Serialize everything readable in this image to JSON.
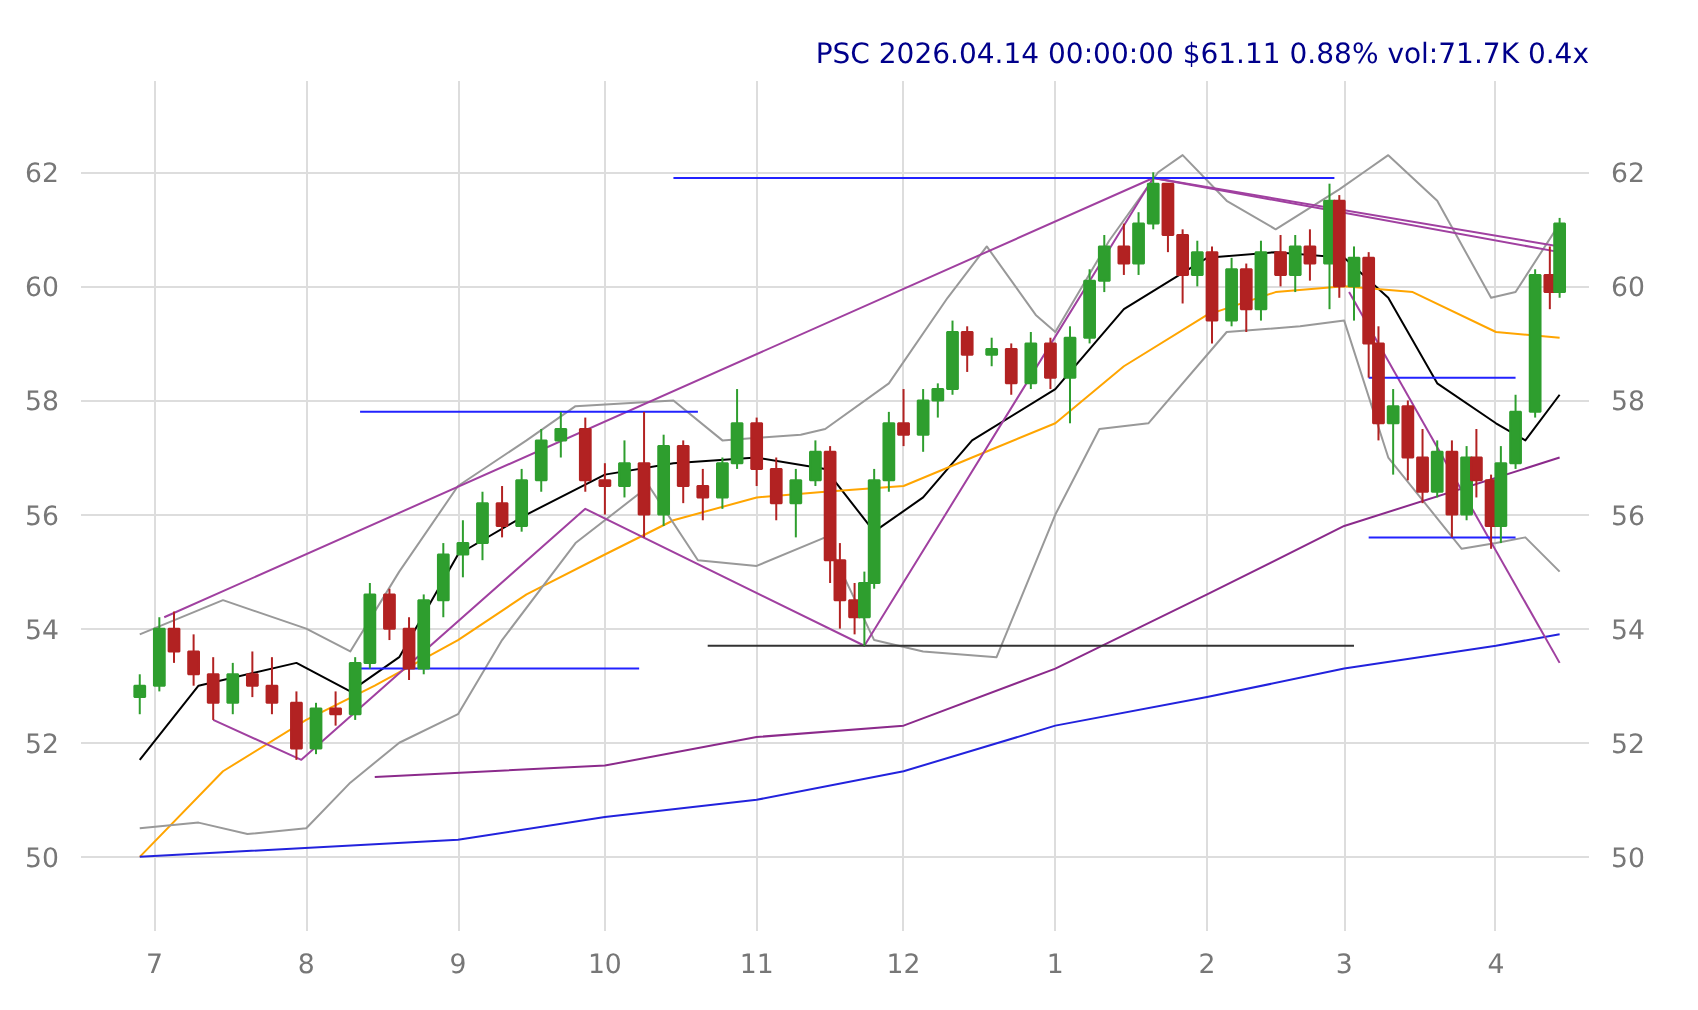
{
  "chart_data": {
    "type": "candlestick",
    "title": "PSC 2026.04.14 00:00:00 $61.11 0.88% vol:71.7K 0.4x",
    "x": [
      "2025-06-28",
      "2025-07-02",
      "2025-07-05",
      "2025-07-09",
      "2025-07-13",
      "2025-07-17",
      "2025-07-21",
      "2025-07-25",
      "2025-07-30",
      "2025-08-03",
      "2025-08-07",
      "2025-08-11",
      "2025-08-14",
      "2025-08-18",
      "2025-08-22",
      "2025-08-25",
      "2025-08-29",
      "2025-09-02",
      "2025-09-06",
      "2025-09-10",
      "2025-09-14",
      "2025-09-18",
      "2025-09-22",
      "2025-09-27",
      "2025-10-01",
      "2025-10-05",
      "2025-10-09",
      "2025-10-13",
      "2025-10-17",
      "2025-10-21",
      "2025-10-25",
      "2025-10-28",
      "2025-11-01",
      "2025-11-05",
      "2025-11-09",
      "2025-11-13",
      "2025-11-16",
      "2025-11-18",
      "2025-11-21",
      "2025-11-23",
      "2025-11-25",
      "2025-11-28",
      "2025-12-01",
      "2025-12-05",
      "2025-12-08",
      "2025-12-11",
      "2025-12-14",
      "2025-12-19",
      "2025-12-23",
      "2025-12-27",
      "2025-12-31",
      "2026-01-04",
      "2026-01-08",
      "2026-01-11",
      "2026-01-15",
      "2026-01-18",
      "2026-01-21",
      "2026-01-24",
      "2026-01-27",
      "2026-01-30",
      "2026-02-02",
      "2026-02-06",
      "2026-02-09",
      "2026-02-12",
      "2026-02-16",
      "2026-02-19",
      "2026-02-22",
      "2026-02-26",
      "2026-02-28",
      "2026-03-03",
      "2026-03-06",
      "2026-03-08",
      "2026-03-11",
      "2026-03-14",
      "2026-03-17",
      "2026-03-20",
      "2026-03-23",
      "2026-03-26",
      "2026-03-28",
      "2026-03-31",
      "2026-04-02",
      "2026-04-05",
      "2026-04-09",
      "2026-04-12",
      "2026-04-14"
    ],
    "ohlc": [
      [
        52.8,
        53.2,
        52.5,
        53.0
      ],
      [
        53.0,
        54.2,
        52.9,
        54.0
      ],
      [
        54.0,
        54.3,
        53.4,
        53.6
      ],
      [
        53.6,
        53.9,
        53.0,
        53.2
      ],
      [
        53.2,
        53.5,
        52.4,
        52.7
      ],
      [
        52.7,
        53.4,
        52.5,
        53.2
      ],
      [
        53.2,
        53.6,
        52.8,
        53.0
      ],
      [
        53.0,
        53.5,
        52.5,
        52.7
      ],
      [
        52.7,
        52.9,
        51.7,
        51.9
      ],
      [
        51.9,
        52.7,
        51.8,
        52.6
      ],
      [
        52.6,
        52.9,
        52.3,
        52.5
      ],
      [
        52.5,
        53.5,
        52.4,
        53.4
      ],
      [
        53.4,
        54.8,
        53.3,
        54.6
      ],
      [
        54.6,
        54.7,
        53.8,
        54.0
      ],
      [
        54.0,
        54.2,
        53.1,
        53.3
      ],
      [
        53.3,
        54.6,
        53.2,
        54.5
      ],
      [
        54.5,
        55.5,
        54.2,
        55.3
      ],
      [
        55.3,
        55.9,
        54.9,
        55.5
      ],
      [
        55.5,
        56.4,
        55.2,
        56.2
      ],
      [
        56.2,
        56.5,
        55.6,
        55.8
      ],
      [
        55.8,
        56.8,
        55.7,
        56.6
      ],
      [
        56.6,
        57.5,
        56.4,
        57.3
      ],
      [
        57.3,
        57.8,
        57.0,
        57.5
      ],
      [
        57.5,
        57.7,
        56.4,
        56.6
      ],
      [
        56.6,
        56.9,
        56.0,
        56.5
      ],
      [
        56.5,
        57.3,
        56.3,
        56.9
      ],
      [
        56.9,
        57.8,
        55.6,
        56.0
      ],
      [
        56.0,
        57.4,
        55.8,
        57.2
      ],
      [
        57.2,
        57.3,
        56.2,
        56.5
      ],
      [
        56.5,
        56.8,
        55.9,
        56.3
      ],
      [
        56.3,
        57.0,
        56.1,
        56.9
      ],
      [
        56.9,
        58.2,
        56.8,
        57.6
      ],
      [
        57.6,
        57.7,
        56.5,
        56.8
      ],
      [
        56.8,
        57.0,
        55.9,
        56.2
      ],
      [
        56.2,
        56.8,
        55.6,
        56.6
      ],
      [
        56.6,
        57.3,
        56.5,
        57.1
      ],
      [
        57.1,
        57.2,
        54.8,
        55.2
      ],
      [
        55.2,
        55.5,
        54.0,
        54.5
      ],
      [
        54.5,
        54.8,
        53.9,
        54.2
      ],
      [
        54.2,
        55.0,
        53.7,
        54.8
      ],
      [
        54.8,
        56.8,
        54.7,
        56.6
      ],
      [
        56.6,
        57.8,
        56.4,
        57.6
      ],
      [
        57.6,
        58.2,
        57.2,
        57.4
      ],
      [
        57.4,
        58.2,
        57.1,
        58.0
      ],
      [
        58.0,
        58.3,
        57.7,
        58.2
      ],
      [
        58.2,
        59.4,
        58.1,
        59.2
      ],
      [
        59.2,
        59.3,
        58.5,
        58.8
      ],
      [
        58.8,
        59.1,
        58.6,
        58.9
      ],
      [
        58.9,
        59.0,
        58.1,
        58.3
      ],
      [
        58.3,
        59.2,
        58.2,
        59.0
      ],
      [
        59.0,
        59.1,
        58.2,
        58.4
      ],
      [
        58.4,
        59.3,
        57.6,
        59.1
      ],
      [
        59.1,
        60.3,
        59.0,
        60.1
      ],
      [
        60.1,
        60.9,
        59.9,
        60.7
      ],
      [
        60.7,
        61.1,
        60.2,
        60.4
      ],
      [
        60.4,
        61.3,
        60.2,
        61.1
      ],
      [
        61.1,
        62.0,
        61.0,
        61.8
      ],
      [
        61.8,
        61.8,
        60.6,
        60.9
      ],
      [
        60.9,
        61.0,
        59.7,
        60.2
      ],
      [
        60.2,
        60.8,
        60.0,
        60.6
      ],
      [
        60.6,
        60.7,
        59.0,
        59.4
      ],
      [
        59.4,
        60.5,
        59.3,
        60.3
      ],
      [
        60.3,
        60.4,
        59.2,
        59.6
      ],
      [
        59.6,
        60.8,
        59.4,
        60.6
      ],
      [
        60.6,
        60.9,
        60.0,
        60.2
      ],
      [
        60.2,
        60.9,
        59.9,
        60.7
      ],
      [
        60.7,
        61.0,
        60.1,
        60.4
      ],
      [
        60.4,
        61.8,
        59.6,
        61.5
      ],
      [
        61.5,
        61.6,
        59.8,
        60.0
      ],
      [
        60.0,
        60.7,
        59.4,
        60.5
      ],
      [
        60.5,
        60.6,
        58.4,
        59.0
      ],
      [
        59.0,
        59.3,
        57.3,
        57.6
      ],
      [
        57.6,
        58.2,
        56.7,
        57.9
      ],
      [
        57.9,
        58.0,
        56.6,
        57.0
      ],
      [
        57.0,
        57.5,
        56.2,
        56.4
      ],
      [
        56.4,
        57.3,
        56.3,
        57.1
      ],
      [
        57.1,
        57.3,
        55.6,
        56.0
      ],
      [
        56.0,
        57.2,
        55.9,
        57.0
      ],
      [
        57.0,
        57.5,
        56.3,
        56.6
      ],
      [
        56.6,
        56.7,
        55.4,
        55.8
      ],
      [
        55.8,
        57.2,
        55.5,
        56.9
      ],
      [
        56.9,
        58.1,
        56.8,
        57.8
      ],
      [
        57.8,
        60.3,
        57.7,
        60.2
      ],
      [
        60.2,
        60.7,
        59.6,
        59.9
      ],
      [
        59.9,
        61.2,
        59.8,
        61.1
      ]
    ],
    "colors": [
      "#2e9e2e",
      "#2e9e2e",
      "#b22222",
      "#b22222",
      "#b22222",
      "#2e9e2e",
      "#b22222",
      "#b22222",
      "#b22222",
      "#2e9e2e",
      "#b22222",
      "#2e9e2e",
      "#2e9e2e",
      "#b22222",
      "#b22222",
      "#2e9e2e",
      "#2e9e2e",
      "#2e9e2e",
      "#2e9e2e",
      "#b22222",
      "#2e9e2e",
      "#2e9e2e",
      "#2e9e2e",
      "#b22222",
      "#b22222",
      "#2e9e2e",
      "#b22222",
      "#2e9e2e",
      "#b22222",
      "#b22222",
      "#2e9e2e",
      "#2e9e2e",
      "#b22222",
      "#b22222",
      "#2e9e2e",
      "#2e9e2e",
      "#b22222",
      "#b22222",
      "#b22222",
      "#2e9e2e",
      "#2e9e2e",
      "#2e9e2e",
      "#b22222",
      "#2e9e2e",
      "#2e9e2e",
      "#2e9e2e",
      "#b22222",
      "#2e9e2e",
      "#b22222",
      "#2e9e2e",
      "#b22222",
      "#2e9e2e",
      "#2e9e2e",
      "#2e9e2e",
      "#b22222",
      "#2e9e2e",
      "#2e9e2e",
      "#b22222",
      "#b22222",
      "#2e9e2e",
      "#b22222",
      "#2e9e2e",
      "#b22222",
      "#2e9e2e",
      "#b22222",
      "#2e9e2e",
      "#b22222",
      "#2e9e2e",
      "#b22222",
      "#2e9e2e",
      "#b22222",
      "#b22222",
      "#2e9e2e",
      "#b22222",
      "#b22222",
      "#2e9e2e",
      "#b22222",
      "#2e9e2e",
      "#b22222",
      "#b22222",
      "#2e9e2e",
      "#2e9e2e",
      "#2e9e2e",
      "#b22222",
      "#2e9e2e"
    ],
    "series": [
      {
        "type": "line",
        "color": "#000000",
        "x": [
          "2025-06-28",
          "2025-07-10",
          "2025-07-30",
          "2025-08-10",
          "2025-08-20",
          "2025-09-01",
          "2025-09-15",
          "2025-10-01",
          "2025-10-15",
          "2025-11-01",
          "2025-11-15",
          "2025-11-25",
          "2025-12-05",
          "2025-12-15",
          "2026-01-01",
          "2026-01-15",
          "2026-02-01",
          "2026-02-15",
          "2026-03-01",
          "2026-03-10",
          "2026-03-20",
          "2026-04-01",
          "2026-04-07",
          "2026-04-14"
        ],
        "values": [
          51.7,
          53.0,
          53.4,
          52.9,
          53.5,
          55.3,
          56.0,
          56.7,
          56.9,
          57.0,
          56.8,
          55.7,
          56.3,
          57.3,
          58.2,
          59.6,
          60.5,
          60.6,
          60.5,
          59.8,
          58.3,
          57.6,
          57.3,
          58.1
        ]
      },
      {
        "type": "line",
        "color": "#ffa500",
        "x": [
          "2025-06-28",
          "2025-07-15",
          "2025-08-01",
          "2025-08-15",
          "2025-09-01",
          "2025-09-15",
          "2025-10-01",
          "2025-10-15",
          "2025-11-01",
          "2025-11-15",
          "2025-12-01",
          "2025-12-15",
          "2026-01-01",
          "2026-01-15",
          "2026-02-01",
          "2026-02-15",
          "2026-03-01",
          "2026-03-15",
          "2026-04-01",
          "2026-04-14"
        ],
        "values": [
          50.0,
          51.5,
          52.4,
          53.0,
          53.8,
          54.6,
          55.3,
          55.9,
          56.3,
          56.4,
          56.5,
          57.0,
          57.6,
          58.6,
          59.5,
          59.9,
          60.0,
          59.9,
          59.2,
          59.1
        ]
      },
      {
        "type": "line",
        "color": "#999999",
        "x": [
          "2025-06-28",
          "2025-07-15",
          "2025-08-01",
          "2025-08-10",
          "2025-08-20",
          "2025-09-01",
          "2025-09-15",
          "2025-09-25",
          "2025-10-15",
          "2025-10-25",
          "2025-11-10",
          "2025-11-15",
          "2025-11-28",
          "2025-12-10",
          "2025-12-18",
          "2025-12-28",
          "2026-01-01",
          "2026-01-12",
          "2026-01-22",
          "2026-01-27",
          "2026-02-05",
          "2026-02-15",
          "2026-02-28",
          "2026-03-05",
          "2026-03-10",
          "2026-03-20",
          "2026-03-31",
          "2026-04-05",
          "2026-04-14"
        ],
        "values": [
          53.9,
          54.5,
          54.0,
          53.6,
          55.0,
          56.5,
          57.3,
          57.9,
          58.0,
          57.3,
          57.4,
          57.5,
          58.3,
          59.8,
          60.7,
          59.5,
          59.2,
          60.8,
          62.0,
          62.3,
          61.5,
          61.0,
          61.7,
          62.0,
          62.3,
          61.5,
          59.8,
          59.9,
          61.1
        ]
      },
      {
        "type": "line",
        "color": "#999999",
        "x": [
          "2025-06-28",
          "2025-07-10",
          "2025-07-20",
          "2025-08-01",
          "2025-08-10",
          "2025-08-20",
          "2025-09-01",
          "2025-09-10",
          "2025-09-25",
          "2025-10-10",
          "2025-10-20",
          "2025-11-01",
          "2025-11-15",
          "2025-11-25",
          "2025-12-05",
          "2025-12-20",
          "2026-01-01",
          "2026-01-10",
          "2026-01-20",
          "2026-02-05",
          "2026-02-20",
          "2026-03-01",
          "2026-03-10",
          "2026-03-25",
          "2026-04-01",
          "2026-04-07",
          "2026-04-14"
        ],
        "values": [
          50.5,
          50.6,
          50.4,
          50.5,
          51.3,
          52.0,
          52.5,
          53.8,
          55.5,
          56.5,
          55.2,
          55.1,
          55.6,
          53.8,
          53.6,
          53.5,
          56.0,
          57.5,
          57.6,
          59.2,
          59.3,
          59.4,
          57.0,
          55.4,
          55.5,
          55.6,
          55.0
        ]
      },
      {
        "type": "line",
        "color": "#8b2a8b",
        "x": [
          "2025-08-15",
          "2025-10-01",
          "2025-11-01",
          "2025-12-01",
          "2026-01-01",
          "2026-02-01",
          "2026-03-01",
          "2026-04-14"
        ],
        "values": [
          51.4,
          51.6,
          52.1,
          52.3,
          53.3,
          54.6,
          55.8,
          57.0
        ]
      },
      {
        "type": "line",
        "color": "#2222dd",
        "x": [
          "2025-06-28",
          "2025-09-01",
          "2025-10-01",
          "2025-11-01",
          "2025-12-01",
          "2026-01-01",
          "2026-02-01",
          "2026-03-01",
          "2026-04-01",
          "2026-04-14"
        ],
        "values": [
          50.0,
          50.3,
          50.7,
          51.0,
          51.5,
          52.3,
          52.8,
          53.3,
          53.7,
          53.9
        ]
      },
      {
        "type": "line",
        "color": "#a040a0",
        "x": [
          "2025-07-03",
          "2026-01-21",
          "2026-04-14"
        ],
        "values": [
          54.2,
          61.9,
          60.7
        ]
      },
      {
        "type": "line",
        "color": "#a040a0",
        "x": [
          "2025-07-13",
          "2025-07-31",
          "2025-09-27",
          "2025-11-23",
          "2026-01-21",
          "2026-04-14"
        ],
        "values": [
          52.4,
          51.7,
          56.1,
          53.7,
          61.9,
          60.6
        ]
      },
      {
        "type": "line",
        "color": "#a040a0",
        "x": [
          "2026-03-02",
          "2026-04-14"
        ],
        "values": [
          59.9,
          53.4
        ]
      },
      {
        "type": "line",
        "color": "#2222ff",
        "x": [
          "2025-10-15",
          "2026-02-27"
        ],
        "values": [
          61.9,
          61.9
        ]
      },
      {
        "type": "line",
        "color": "#2222ff",
        "x": [
          "2025-08-12",
          "2025-10-20"
        ],
        "values": [
          57.8,
          57.8
        ]
      },
      {
        "type": "line",
        "color": "#2222ff",
        "x": [
          "2025-08-12",
          "2025-10-08"
        ],
        "values": [
          53.3,
          53.3
        ]
      },
      {
        "type": "line",
        "color": "#2222ff",
        "x": [
          "2026-03-06",
          "2026-04-05"
        ],
        "values": [
          58.4,
          58.4
        ]
      },
      {
        "type": "line",
        "color": "#2222ff",
        "x": [
          "2026-03-06",
          "2026-04-05"
        ],
        "values": [
          55.6,
          55.6
        ]
      },
      {
        "type": "line",
        "color": "#333333",
        "x": [
          "2025-10-22",
          "2026-03-03"
        ],
        "values": [
          53.7,
          53.7
        ]
      }
    ],
    "xlim": [
      "2025-06-16",
      "2026-04-20"
    ],
    "xticks": [
      {
        "value": "2025-07-01",
        "label": "7"
      },
      {
        "value": "2025-08-01",
        "label": "8"
      },
      {
        "value": "2025-09-01",
        "label": "9"
      },
      {
        "value": "2025-10-01",
        "label": "10"
      },
      {
        "value": "2025-11-01",
        "label": "11"
      },
      {
        "value": "2025-12-01",
        "label": "12"
      },
      {
        "value": "2026-01-01",
        "label": "1"
      },
      {
        "value": "2026-02-01",
        "label": "2"
      },
      {
        "value": "2026-03-01",
        "label": "3"
      },
      {
        "value": "2026-04-01",
        "label": "4"
      }
    ],
    "ylim": [
      48.7,
      63.6
    ],
    "yticks": [
      50,
      52,
      54,
      56,
      58,
      60,
      62
    ],
    "y2lim": [
      48.7,
      63.6
    ],
    "y2ticks": [
      50,
      52,
      54,
      56,
      58,
      60,
      62
    ],
    "grid": true
  }
}
